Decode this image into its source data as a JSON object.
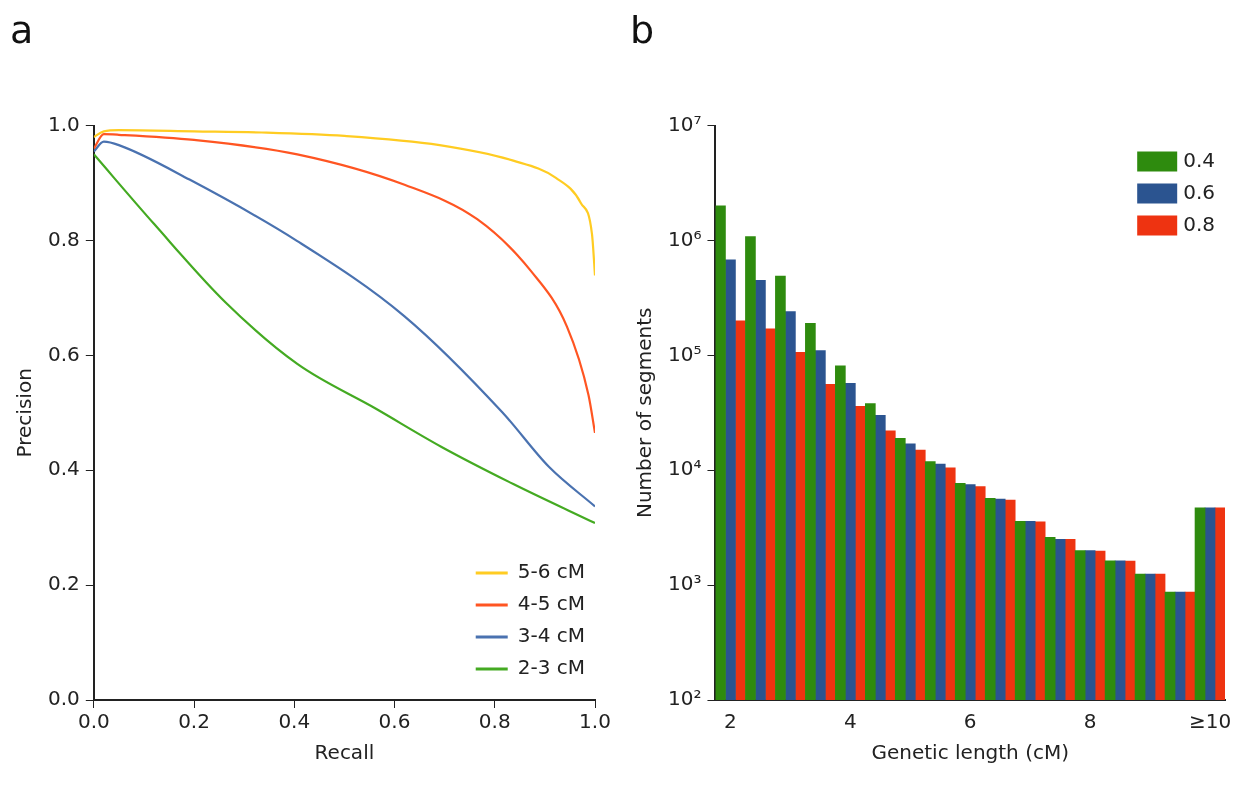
{
  "chart_data": [
    {
      "type": "line",
      "title": "a",
      "xlabel": "Recall",
      "ylabel": "Precision",
      "xlim": [
        0,
        1
      ],
      "ylim": [
        0,
        1
      ],
      "xticks": [
        {
          "value": 0,
          "label": "0.0"
        },
        0.2,
        0.4,
        0.6,
        0.8,
        {
          "value": 1,
          "label": "1.0"
        }
      ],
      "yticks": [
        {
          "value": 0,
          "label": "0.0"
        },
        0.2,
        0.4,
        0.6,
        0.8,
        {
          "value": 1,
          "label": "1.0"
        }
      ],
      "legend": "bottom right",
      "series": [
        {
          "name": "5-6 cM",
          "color": "#ffcc22",
          "x": [
            0,
            0.02,
            0.05,
            0.2,
            0.335,
            0.5,
            0.69,
            0.837,
            0.922,
            0.972,
            0.994,
            1
          ],
          "values": [
            0.98,
            0.99,
            0.992,
            0.99,
            0.988,
            0.982,
            0.966,
            0.939,
            0.909,
            0.865,
            0.811,
            0.739
          ]
        },
        {
          "name": "4-5 cM",
          "color": "#ff5522",
          "x": [
            0,
            0.02,
            0.05,
            0.2,
            0.406,
            0.62,
            0.765,
            0.872,
            0.944,
            0.987,
            1
          ],
          "values": [
            0.96,
            0.985,
            0.984,
            0.975,
            0.95,
            0.897,
            0.837,
            0.747,
            0.65,
            0.531,
            0.465
          ]
        },
        {
          "name": "3-4 cM",
          "color": "#4a72b0",
          "x": [
            0,
            0.02,
            0.05,
            0.191,
            0.406,
            0.62,
            0.815,
            0.908,
            1
          ],
          "values": [
            0.955,
            0.972,
            0.966,
            0.906,
            0.799,
            0.668,
            0.501,
            0.406,
            0.337
          ]
        },
        {
          "name": "2-3 cM",
          "color": "#44aa22",
          "x": [
            0,
            0.12,
            0.263,
            0.406,
            0.563,
            0.693,
            0.837,
            1
          ],
          "values": [
            0.95,
            0.829,
            0.692,
            0.585,
            0.507,
            0.441,
            0.376,
            0.308
          ]
        }
      ]
    },
    {
      "type": "bar",
      "title": "b",
      "xlabel": "Genetic length (cM)",
      "ylabel": "Number of segments",
      "log": "y",
      "ylim": [
        100,
        10000000
      ],
      "yticks": [
        {
          "value": 100,
          "label": "10²"
        },
        {
          "value": 1000,
          "label": "10³"
        },
        {
          "value": 10000,
          "label": "10⁴"
        },
        {
          "value": 100000,
          "label": "10⁵"
        },
        {
          "value": 1000000,
          "label": "10⁶"
        },
        {
          "value": 10000000,
          "label": "10⁷"
        }
      ],
      "legend": "top right",
      "categories": [
        "2",
        null,
        null,
        null,
        "4",
        null,
        null,
        null,
        "6",
        null,
        null,
        null,
        "8",
        null,
        null,
        null,
        "≥10"
      ],
      "series": [
        {
          "name": "0.4",
          "color": "#2e8b0e",
          "values": [
            2000000,
            1080000,
            490000,
            190000,
            81000,
            38000,
            19000,
            11900,
            7700,
            5700,
            3600,
            2600,
            2000,
            1630,
            1250,
            870,
            4700
          ]
        },
        {
          "name": "0.6",
          "color": "#2b5490",
          "values": [
            680000,
            450000,
            240000,
            110000,
            57000,
            30000,
            17000,
            11300,
            7500,
            5600,
            3600,
            2500,
            2000,
            1630,
            1250,
            870,
            4700
          ]
        },
        {
          "name": "0.8",
          "color": "#ee3311",
          "values": [
            200000,
            170000,
            106000,
            56000,
            36000,
            22000,
            15000,
            10500,
            7200,
            5500,
            3550,
            2500,
            1980,
            1620,
            1250,
            870,
            4700
          ]
        }
      ]
    }
  ]
}
